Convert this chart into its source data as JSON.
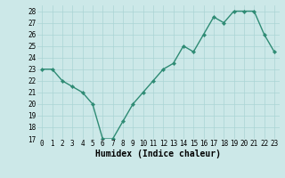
{
  "x": [
    0,
    1,
    2,
    3,
    4,
    5,
    6,
    7,
    8,
    9,
    10,
    11,
    12,
    13,
    14,
    15,
    16,
    17,
    18,
    19,
    20,
    21,
    22,
    23
  ],
  "y": [
    23,
    23,
    22,
    21.5,
    21,
    20,
    17,
    17,
    18.5,
    20,
    21,
    22,
    23,
    23.5,
    25,
    24.5,
    26,
    27.5,
    27,
    28,
    28,
    28,
    26,
    24.5
  ],
  "line_color": "#2e8b74",
  "marker_color": "#2e8b74",
  "bg_color": "#cce8e8",
  "grid_color": "#aad4d4",
  "xlabel": "Humidex (Indice chaleur)",
  "xlim": [
    -0.5,
    23.5
  ],
  "ylim": [
    17,
    28.5
  ],
  "yticks": [
    17,
    18,
    19,
    20,
    21,
    22,
    23,
    24,
    25,
    26,
    27,
    28
  ],
  "xticks": [
    0,
    1,
    2,
    3,
    4,
    5,
    6,
    7,
    8,
    9,
    10,
    11,
    12,
    13,
    14,
    15,
    16,
    17,
    18,
    19,
    20,
    21,
    22,
    23
  ],
  "tick_fontsize": 5.5,
  "xlabel_fontsize": 7,
  "marker_size": 2.2,
  "line_width": 1.0
}
